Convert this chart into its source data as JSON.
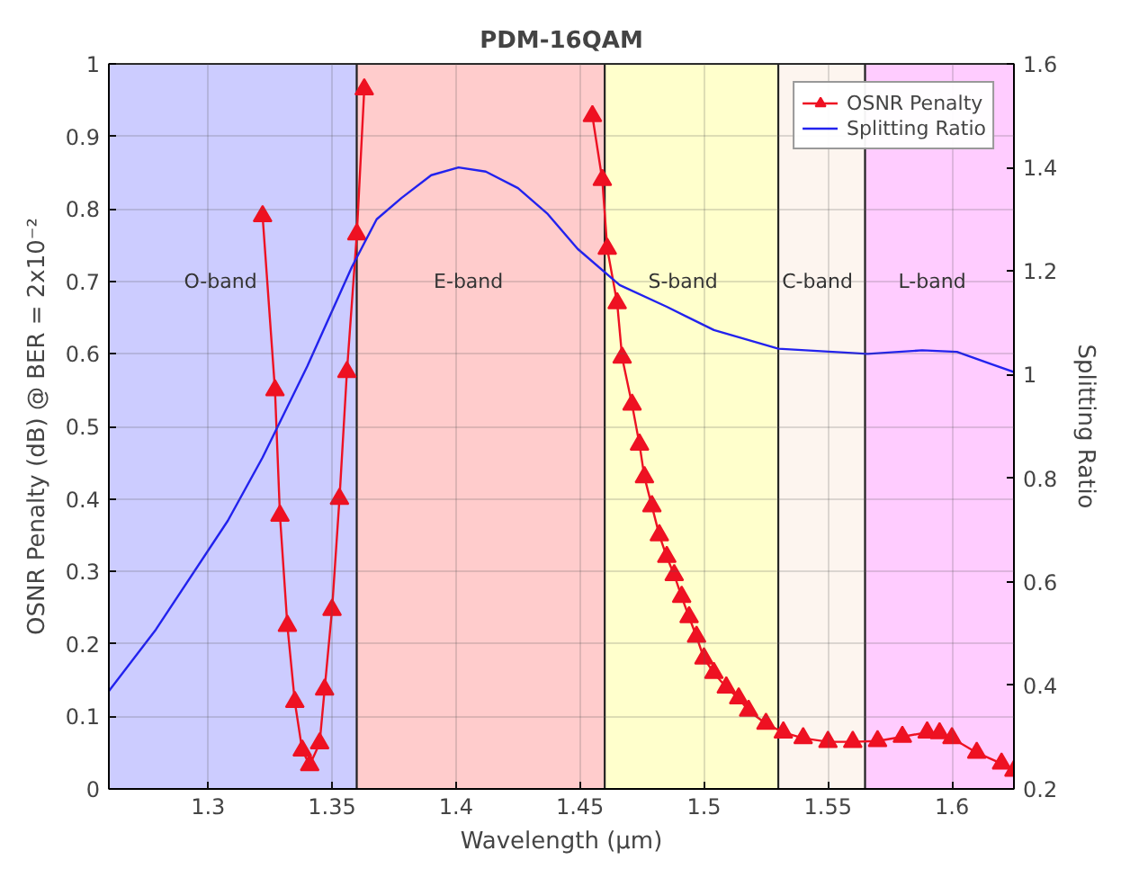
{
  "chart_data": {
    "type": "line",
    "title": "PDM-16QAM",
    "xlabel": "Wavelength (μm)",
    "ylabel": "OSNR Penalty (dB) @ BER = 2x10⁻²",
    "y2label": "Splitting Ratio",
    "xlim": [
      1.26,
      1.625
    ],
    "xticks": [
      1.3,
      1.35,
      1.4,
      1.45,
      1.5,
      1.55,
      1.6
    ],
    "ylim": [
      0,
      1
    ],
    "yticks": [
      0,
      0.1,
      0.2,
      0.3,
      0.4,
      0.5,
      0.6,
      0.7,
      0.8,
      0.9,
      1
    ],
    "y2lim": [
      0.2,
      1.6
    ],
    "y2ticks": [
      0.2,
      0.4,
      0.6,
      0.8,
      1,
      1.2,
      1.4,
      1.6
    ],
    "grid": true,
    "legend": "top right",
    "bands": [
      {
        "axis": "x",
        "from": 1.26,
        "to": 1.36,
        "label": "O-band",
        "color": "#ccccff"
      },
      {
        "axis": "x",
        "from": 1.36,
        "to": 1.46,
        "label": "E-band",
        "color": "#ffcccc"
      },
      {
        "axis": "x",
        "from": 1.46,
        "to": 1.53,
        "label": "S-band",
        "color": "#ffffcc"
      },
      {
        "axis": "x",
        "from": 1.53,
        "to": 1.565,
        "label": "C-band",
        "color": "#fdf5ef"
      },
      {
        "axis": "x",
        "from": 1.565,
        "to": 1.625,
        "label": "L-band",
        "color": "#ffccff"
      }
    ],
    "series": [
      {
        "name": "OSNR Penalty",
        "color": "#ee1122",
        "marker": "triangle",
        "x": [
          1.322,
          1.327,
          1.329,
          1.332,
          1.335,
          1.338,
          1.341,
          1.345,
          1.347,
          1.35,
          1.353,
          1.356,
          1.36,
          1.363,
          1.41,
          1.455,
          1.459,
          1.461,
          1.465,
          1.467,
          1.471,
          1.474,
          1.476,
          1.479,
          1.482,
          1.485,
          1.488,
          1.491,
          1.494,
          1.497,
          1.5,
          1.504,
          1.509,
          1.514,
          1.518,
          1.525,
          1.532,
          1.54,
          1.55,
          1.56,
          1.57,
          1.58,
          1.59,
          1.595,
          1.6,
          1.61,
          1.62,
          1.625
        ],
        "values": [
          0.79,
          0.55,
          0.377,
          0.225,
          0.12,
          0.053,
          0.033,
          0.063,
          0.137,
          0.247,
          0.4,
          0.575,
          0.765,
          0.965,
          null,
          0.928,
          0.84,
          0.745,
          0.67,
          0.595,
          0.53,
          0.475,
          0.43,
          0.39,
          0.35,
          0.32,
          0.295,
          0.265,
          0.237,
          0.21,
          0.18,
          0.16,
          0.14,
          0.125,
          0.108,
          0.09,
          0.078,
          0.07,
          0.065,
          0.065,
          0.066,
          0.072,
          0.078,
          0.077,
          0.07,
          0.05,
          0.035,
          0.025
        ]
      },
      {
        "name": "Splitting Ratio",
        "color": "#2222ee",
        "marker": "none",
        "axis": "y2",
        "x": [
          1.26,
          1.279,
          1.308,
          1.322,
          1.34,
          1.358,
          1.368,
          1.378,
          1.39,
          1.401,
          1.412,
          1.425,
          1.437,
          1.449,
          1.466,
          1.485,
          1.504,
          1.53,
          1.566,
          1.588,
          1.602,
          1.616,
          1.625
        ],
        "values": [
          0.389,
          0.508,
          0.718,
          0.84,
          1.016,
          1.208,
          1.3,
          1.341,
          1.385,
          1.4,
          1.392,
          1.36,
          1.31,
          1.243,
          1.173,
          1.131,
          1.086,
          1.05,
          1.04,
          1.047,
          1.044,
          1.02,
          1.005
        ]
      }
    ]
  }
}
